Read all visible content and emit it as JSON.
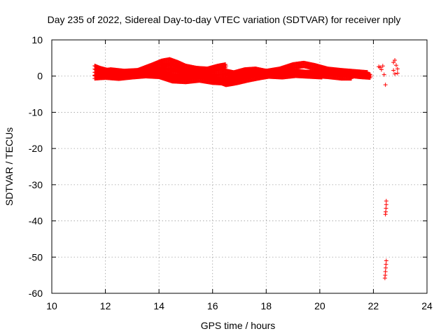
{
  "chart_data": {
    "type": "scatter",
    "title": "Day 235 of 2022, Sidereal Day-to-day VTEC variation (SDTVAR) for receiver nply",
    "xlabel": "GPS time / hours",
    "ylabel": "SDTVAR / TECUs",
    "xlim": [
      10,
      24
    ],
    "ylim": [
      -60,
      10
    ],
    "xticks": [
      10,
      12,
      14,
      16,
      18,
      20,
      22,
      24
    ],
    "yticks": [
      10,
      0,
      -10,
      -20,
      -30,
      -40,
      -50,
      -60
    ],
    "grid": true,
    "legend": false,
    "marker": "+",
    "series": [
      {
        "color": "#ff0000",
        "tracks": [
          [
            [
              11.6,
              2.4
            ],
            [
              11.8,
              1.8
            ],
            [
              12.1,
              1.2
            ],
            [
              12.5,
              0.8
            ],
            [
              13.0,
              0.6
            ],
            [
              13.5,
              0.9
            ],
            [
              14.0,
              1.6
            ],
            [
              14.3,
              2.6
            ],
            [
              14.6,
              2.2
            ],
            [
              15.0,
              1.0
            ],
            [
              15.5,
              0.2
            ],
            [
              16.0,
              -0.4
            ],
            [
              16.4,
              -0.2
            ],
            [
              16.8,
              0.6
            ],
            [
              17.2,
              1.4
            ],
            [
              17.6,
              1.6
            ],
            [
              18.0,
              1.0
            ],
            [
              18.5,
              1.6
            ],
            [
              19.0,
              2.8
            ],
            [
              19.4,
              3.2
            ],
            [
              19.8,
              2.6
            ],
            [
              20.3,
              1.6
            ],
            [
              20.8,
              1.2
            ],
            [
              21.3,
              0.9
            ],
            [
              21.8,
              0.6
            ]
          ],
          [
            [
              11.6,
              0.6
            ],
            [
              11.9,
              0.2
            ],
            [
              12.3,
              0.3
            ],
            [
              12.8,
              0.6
            ],
            [
              13.3,
              0.8
            ],
            [
              13.8,
              0.9
            ],
            [
              14.2,
              0.5
            ],
            [
              14.6,
              -0.4
            ],
            [
              15.0,
              -0.2
            ],
            [
              15.5,
              0.3
            ],
            [
              16.0,
              0.9
            ],
            [
              16.4,
              1.2
            ],
            [
              16.9,
              0.4
            ],
            [
              17.4,
              0.9
            ],
            [
              17.8,
              0.6
            ],
            [
              18.3,
              0.4
            ],
            [
              18.8,
              0.7
            ],
            [
              19.3,
              0.8
            ],
            [
              19.8,
              0.5
            ],
            [
              20.3,
              0.2
            ],
            [
              20.8,
              -0.2
            ],
            [
              21.2,
              -0.2
            ]
          ],
          [
            [
              11.6,
              -0.2
            ],
            [
              12.0,
              0.0
            ],
            [
              12.5,
              -0.3
            ],
            [
              13.0,
              0.1
            ],
            [
              13.5,
              0.4
            ],
            [
              14.0,
              0.2
            ],
            [
              14.5,
              -1.0
            ],
            [
              15.0,
              -1.2
            ],
            [
              15.5,
              -0.8
            ],
            [
              16.0,
              -1.4
            ],
            [
              16.5,
              -1.6
            ],
            [
              17.0,
              -0.2
            ],
            [
              17.5,
              0.6
            ],
            [
              18.0,
              0.8
            ],
            [
              18.5,
              0.9
            ],
            [
              19.0,
              1.1
            ],
            [
              19.5,
              0.7
            ],
            [
              20.0,
              0.9
            ],
            [
              20.5,
              1.0
            ],
            [
              21.0,
              0.6
            ],
            [
              21.5,
              0.2
            ],
            [
              21.9,
              0.0
            ]
          ],
          [
            [
              11.8,
              1.0
            ],
            [
              12.2,
              1.4
            ],
            [
              12.7,
              1.0
            ],
            [
              13.2,
              1.2
            ],
            [
              13.7,
              2.6
            ],
            [
              14.1,
              3.8
            ],
            [
              14.4,
              4.2
            ],
            [
              14.7,
              3.4
            ],
            [
              15.0,
              2.4
            ],
            [
              15.4,
              1.8
            ],
            [
              15.8,
              1.6
            ],
            [
              16.2,
              2.4
            ],
            [
              16.5,
              2.8
            ]
          ],
          [
            [
              13.9,
              1.6
            ],
            [
              14.4,
              1.2
            ],
            [
              14.9,
              0.9
            ],
            [
              15.3,
              1.3
            ],
            [
              15.7,
              0.8
            ],
            [
              16.1,
              -0.9
            ],
            [
              16.5,
              -2.0
            ],
            [
              16.9,
              -1.5
            ],
            [
              17.3,
              -0.8
            ],
            [
              17.7,
              -0.2
            ],
            [
              18.1,
              0.3
            ],
            [
              18.6,
              0.1
            ],
            [
              19.1,
              0.5
            ],
            [
              19.6,
              0.3
            ],
            [
              20.1,
              0.1
            ]
          ]
        ],
        "points": [
          [
            22.2,
            2.6
          ],
          [
            22.25,
            2.4
          ],
          [
            22.3,
            1.8
          ],
          [
            22.35,
            2.8
          ],
          [
            22.4,
            0.4
          ],
          [
            22.45,
            -2.4
          ],
          [
            22.75,
            3.8
          ],
          [
            22.75,
            1.6
          ],
          [
            22.8,
            4.4
          ],
          [
            22.8,
            0.6
          ],
          [
            22.85,
            3.0
          ],
          [
            22.9,
            2.0
          ],
          [
            22.9,
            0.8
          ],
          [
            22.48,
            -34.5
          ],
          [
            22.48,
            -35.5
          ],
          [
            22.47,
            -36.5
          ],
          [
            22.46,
            -37.5
          ],
          [
            22.45,
            -38.2
          ],
          [
            22.48,
            -51.0
          ],
          [
            22.47,
            -52.0
          ],
          [
            22.46,
            -53.0
          ],
          [
            22.45,
            -54.0
          ],
          [
            22.44,
            -55.0
          ],
          [
            22.43,
            -55.8
          ]
        ]
      }
    ]
  }
}
